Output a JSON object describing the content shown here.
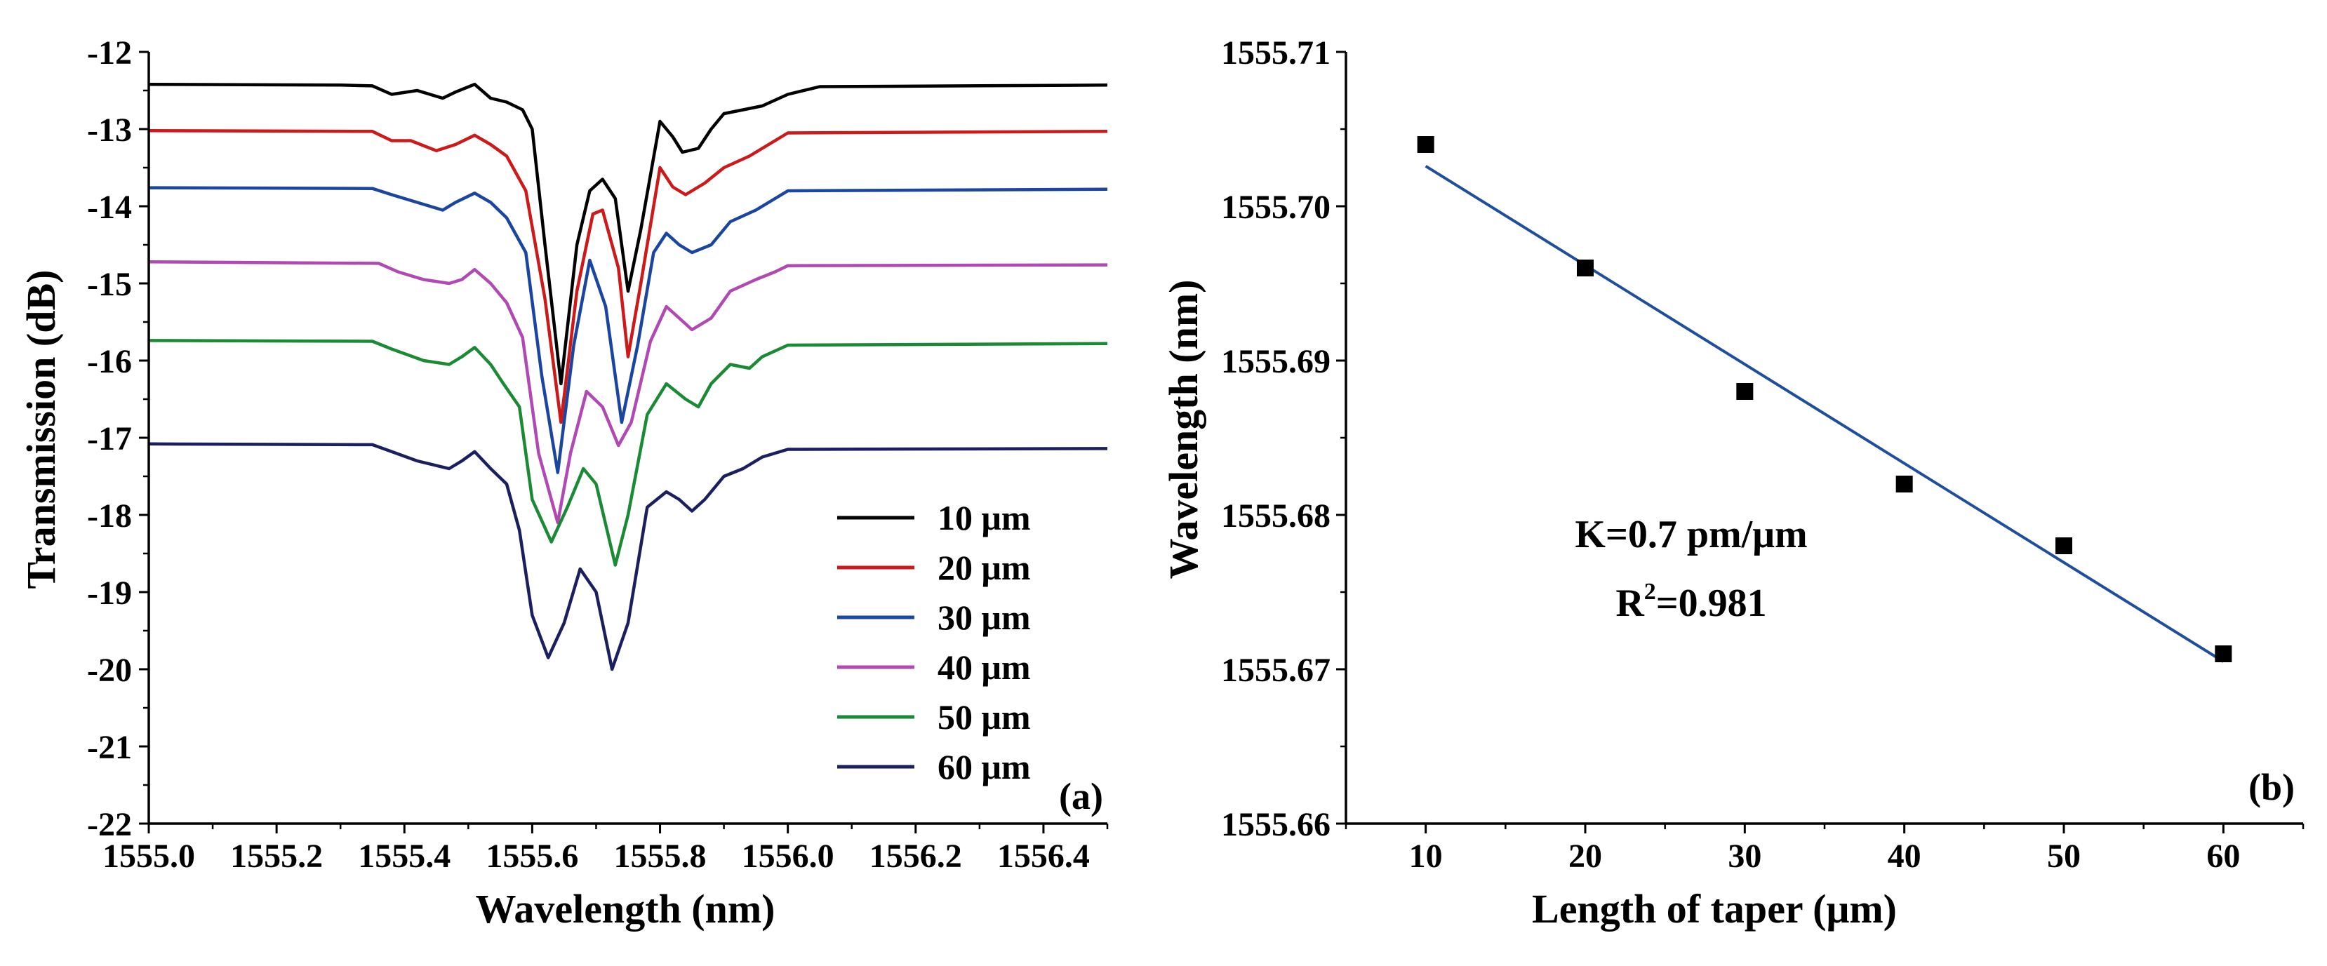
{
  "chart_data": [
    {
      "type": "line",
      "panel_label": "(a)",
      "xlabel": "Wavelength (nm)",
      "ylabel": "Transmission (dB)",
      "xlim": [
        1555.0,
        1556.5
      ],
      "ylim": [
        -22,
        -12
      ],
      "xticks": [
        "1555.0",
        "1555.2",
        "1555.4",
        "1555.6",
        "1555.8",
        "1556.0",
        "1556.2",
        "1556.4"
      ],
      "yticks": [
        "-12",
        "-13",
        "-14",
        "-15",
        "-16",
        "-17",
        "-18",
        "-19",
        "-20",
        "-21",
        "-22"
      ],
      "legend_position": "bottom-right",
      "series": [
        {
          "name": "10 μm",
          "color": "#000000",
          "x": [
            1555.0,
            1555.3,
            1555.35,
            1555.38,
            1555.42,
            1555.46,
            1555.48,
            1555.51,
            1555.535,
            1555.56,
            1555.585,
            1555.6,
            1555.62,
            1555.645,
            1555.67,
            1555.69,
            1555.71,
            1555.73,
            1555.75,
            1555.77,
            1555.8,
            1555.82,
            1555.835,
            1555.86,
            1555.88,
            1555.9,
            1555.93,
            1555.96,
            1556.0,
            1556.05,
            1556.5
          ],
          "y": [
            -12.42,
            -12.43,
            -12.44,
            -12.55,
            -12.5,
            -12.6,
            -12.52,
            -12.42,
            -12.6,
            -12.65,
            -12.75,
            -13.0,
            -14.5,
            -16.3,
            -14.5,
            -13.8,
            -13.65,
            -13.9,
            -15.1,
            -14.3,
            -12.9,
            -13.1,
            -13.3,
            -13.25,
            -13.0,
            -12.8,
            -12.75,
            -12.7,
            -12.55,
            -12.45,
            -12.43
          ]
        },
        {
          "name": "20 μm",
          "color": "#cc1a1a",
          "x": [
            1555.0,
            1555.35,
            1555.38,
            1555.41,
            1555.45,
            1555.48,
            1555.51,
            1555.535,
            1555.56,
            1555.59,
            1555.62,
            1555.645,
            1555.67,
            1555.695,
            1555.71,
            1555.735,
            1555.75,
            1555.77,
            1555.8,
            1555.82,
            1555.84,
            1555.87,
            1555.9,
            1555.94,
            1555.97,
            1556.0,
            1556.5
          ],
          "y": [
            -13.02,
            -13.03,
            -13.15,
            -13.15,
            -13.28,
            -13.2,
            -13.08,
            -13.2,
            -13.35,
            -13.8,
            -15.2,
            -16.8,
            -15.1,
            -14.1,
            -14.05,
            -14.8,
            -15.95,
            -15.0,
            -13.5,
            -13.75,
            -13.85,
            -13.7,
            -13.5,
            -13.35,
            -13.2,
            -13.05,
            -13.03
          ]
        },
        {
          "name": "30 μm",
          "color": "#1a46a0",
          "x": [
            1555.0,
            1555.35,
            1555.38,
            1555.42,
            1555.46,
            1555.48,
            1555.51,
            1555.535,
            1555.56,
            1555.59,
            1555.615,
            1555.64,
            1555.665,
            1555.69,
            1555.715,
            1555.74,
            1555.765,
            1555.79,
            1555.81,
            1555.83,
            1555.85,
            1555.88,
            1555.91,
            1555.95,
            1555.98,
            1556.0,
            1556.5
          ],
          "y": [
            -13.76,
            -13.77,
            -13.85,
            -13.95,
            -14.05,
            -13.95,
            -13.83,
            -13.95,
            -14.15,
            -14.6,
            -16.2,
            -17.45,
            -15.8,
            -14.7,
            -15.3,
            -16.8,
            -15.8,
            -14.6,
            -14.35,
            -14.5,
            -14.6,
            -14.5,
            -14.2,
            -14.05,
            -13.9,
            -13.8,
            -13.78
          ]
        },
        {
          "name": "40 μm",
          "color": "#b04ab2",
          "x": [
            1555.0,
            1555.36,
            1555.39,
            1555.43,
            1555.47,
            1555.49,
            1555.51,
            1555.535,
            1555.56,
            1555.585,
            1555.61,
            1555.64,
            1555.66,
            1555.685,
            1555.71,
            1555.735,
            1555.755,
            1555.785,
            1555.81,
            1555.83,
            1555.85,
            1555.88,
            1555.91,
            1555.95,
            1555.98,
            1556.0,
            1556.5
          ],
          "y": [
            -14.72,
            -14.74,
            -14.85,
            -14.95,
            -15.0,
            -14.95,
            -14.82,
            -15.0,
            -15.25,
            -15.7,
            -17.2,
            -18.1,
            -17.2,
            -16.4,
            -16.6,
            -17.1,
            -16.8,
            -15.75,
            -15.3,
            -15.45,
            -15.6,
            -15.45,
            -15.1,
            -14.95,
            -14.85,
            -14.77,
            -14.76
          ]
        },
        {
          "name": "50 μm",
          "color": "#1a8a35",
          "x": [
            1555.0,
            1555.35,
            1555.38,
            1555.43,
            1555.47,
            1555.49,
            1555.51,
            1555.535,
            1555.555,
            1555.58,
            1555.6,
            1555.63,
            1555.655,
            1555.68,
            1555.7,
            1555.73,
            1555.75,
            1555.78,
            1555.81,
            1555.84,
            1555.86,
            1555.88,
            1555.91,
            1555.94,
            1555.96,
            1556.0,
            1556.5
          ],
          "y": [
            -15.74,
            -15.75,
            -15.85,
            -16.0,
            -16.05,
            -15.95,
            -15.83,
            -16.05,
            -16.3,
            -16.6,
            -17.8,
            -18.35,
            -17.9,
            -17.4,
            -17.6,
            -18.65,
            -18.0,
            -16.7,
            -16.3,
            -16.5,
            -16.6,
            -16.3,
            -16.05,
            -16.1,
            -15.95,
            -15.8,
            -15.78
          ]
        },
        {
          "name": "60 μm",
          "color": "#1c1f5e",
          "x": [
            1555.0,
            1555.35,
            1555.38,
            1555.42,
            1555.47,
            1555.49,
            1555.51,
            1555.535,
            1555.56,
            1555.58,
            1555.6,
            1555.625,
            1555.65,
            1555.675,
            1555.7,
            1555.725,
            1555.75,
            1555.78,
            1555.81,
            1555.83,
            1555.85,
            1555.87,
            1555.9,
            1555.93,
            1555.96,
            1556.0,
            1556.5
          ],
          "y": [
            -17.08,
            -17.09,
            -17.18,
            -17.3,
            -17.4,
            -17.3,
            -17.18,
            -17.4,
            -17.6,
            -18.2,
            -19.3,
            -19.85,
            -19.4,
            -18.7,
            -19.0,
            -20.0,
            -19.4,
            -17.9,
            -17.7,
            -17.8,
            -17.95,
            -17.8,
            -17.5,
            -17.4,
            -17.25,
            -17.15,
            -17.14
          ]
        }
      ]
    },
    {
      "type": "scatter",
      "panel_label": "(b)",
      "xlabel": "Length of taper (μm)",
      "ylabel": "Wavelength (nm)",
      "xlim": [
        5,
        65
      ],
      "ylim": [
        1555.66,
        1555.71
      ],
      "xticks": [
        "10",
        "20",
        "30",
        "40",
        "50",
        "60"
      ],
      "yticks": [
        "1555.71",
        "1555.70",
        "1555.69",
        "1555.68",
        "1555.67",
        "1555.66"
      ],
      "points": {
        "x": [
          10,
          20,
          30,
          40,
          50,
          60
        ],
        "y": [
          1555.704,
          1555.696,
          1555.688,
          1555.682,
          1555.678,
          1555.671
        ]
      },
      "fit": {
        "x": [
          10,
          60
        ],
        "y": [
          1555.7026,
          1555.6705
        ],
        "color": "#1f4e9c"
      },
      "annotation": {
        "slope": "K=0.7 pm/μm",
        "r_prefix": "R",
        "r_exp": "2",
        "r_value": "=0.981"
      }
    }
  ]
}
